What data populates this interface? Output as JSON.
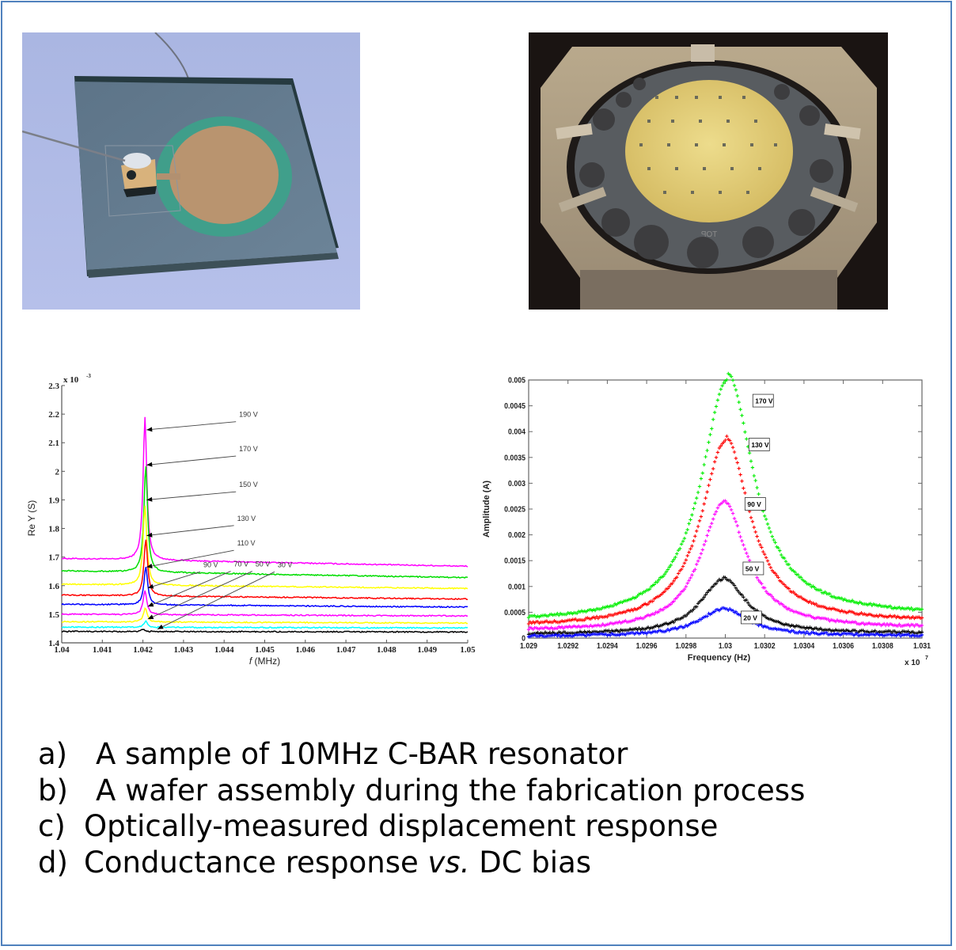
{
  "figure": {
    "border_color": "#4f81bd",
    "photos": [
      {
        "id": "a",
        "description": "10MHz C-BAR resonator sample on glass substrate with gold circular electrode and wire bond"
      },
      {
        "id": "b",
        "description": "Wafer assembly in metal fixture during fabrication",
        "visible_text": "TOP"
      }
    ],
    "captions": [
      {
        "label": "a)",
        "text": "A sample of 10MHz C-BAR resonator"
      },
      {
        "label": "b)",
        "text": "A wafer assembly during the fabrication process"
      },
      {
        "label": "c)",
        "text": "Optically-measured displacement response"
      },
      {
        "label": "d)",
        "text_before": "Conductance response ",
        "text_italic": "vs.",
        "text_after": " DC bias"
      }
    ]
  },
  "chart_data": [
    {
      "type": "line",
      "title": "",
      "xlabel": "f (MHz)",
      "xlabel_italic": "f",
      "xlabel_rest": " (MHz)",
      "ylabel": "Re Y (S)",
      "y_exponent_label": "x 10",
      "y_exponent": "-3",
      "xlim": [
        1.04,
        1.05
      ],
      "ylim": [
        1.4,
        2.3
      ],
      "xticks": [
        "1.04",
        "1.041",
        "1.042",
        "1.043",
        "1.044",
        "1.045",
        "1.046",
        "1.047",
        "1.048",
        "1.049",
        "1.05"
      ],
      "yticks": [
        "1.4",
        "1.5",
        "1.6",
        "1.7",
        "1.8",
        "1.9",
        "2",
        "2.1",
        "2.2",
        "2.3"
      ],
      "grid": false,
      "series": [
        {
          "name": "190 V",
          "color": "#ff00ff",
          "base_start": 1.695,
          "base_end": 1.668,
          "peak_x": 1.04205,
          "peak_y": 2.195
        },
        {
          "name": "170 V",
          "color": "#00dd00",
          "base_start": 1.652,
          "base_end": 1.628,
          "peak_x": 1.04207,
          "peak_y": 2.025
        },
        {
          "name": "150 V",
          "color": "#ffff00",
          "base_start": 1.605,
          "base_end": 1.59,
          "peak_x": 1.04205,
          "peak_y": 1.885
        },
        {
          "name": "130 V",
          "color": "#ff0000",
          "base_start": 1.567,
          "base_end": 1.553,
          "peak_x": 1.04207,
          "peak_y": 1.765
        },
        {
          "name": "110 V",
          "color": "#0000ff",
          "base_start": 1.535,
          "base_end": 1.525,
          "peak_x": 1.04207,
          "peak_y": 1.668
        },
        {
          "name": "90 V",
          "color": "#ff00ff",
          "base_start": 1.5,
          "base_end": 1.494,
          "peak_x": 1.04205,
          "peak_y": 1.583
        },
        {
          "name": "70 V",
          "color": "#ffff00",
          "base_start": 1.474,
          "base_end": 1.469,
          "peak_x": 1.04206,
          "peak_y": 1.522
        },
        {
          "name": "50 V",
          "color": "#00ffff",
          "base_start": 1.455,
          "base_end": 1.452,
          "peak_x": 1.04207,
          "peak_y": 1.477
        },
        {
          "name": "30 V",
          "color": "#000000",
          "base_start": 1.44,
          "base_end": 1.438,
          "peak_x": 1.042,
          "peak_y": 1.447
        }
      ],
      "annotations": [
        {
          "text": "190 V",
          "label_xy": [
            1.04437,
            2.19
          ],
          "arrow_to": [
            1.04209,
            2.145
          ]
        },
        {
          "text": "170 V",
          "label_xy": [
            1.04437,
            2.07
          ],
          "arrow_to": [
            1.04209,
            2.022
          ]
        },
        {
          "text": "150 V",
          "label_xy": [
            1.04437,
            1.945
          ],
          "arrow_to": [
            1.04209,
            1.9
          ]
        },
        {
          "text": "130 V",
          "label_xy": [
            1.04432,
            1.827
          ],
          "arrow_to": [
            1.04209,
            1.775
          ]
        },
        {
          "text": "110 V",
          "label_xy": [
            1.04432,
            1.74
          ],
          "arrow_to": [
            1.04209,
            1.665
          ]
        },
        {
          "text": "90 V",
          "label_xy": [
            1.04349,
            1.665
          ],
          "arrow_to": [
            1.04212,
            1.592
          ]
        },
        {
          "text": "70 V",
          "label_xy": [
            1.04424,
            1.667
          ],
          "arrow_to": [
            1.04212,
            1.527
          ]
        },
        {
          "text": "50 V",
          "label_xy": [
            1.04477,
            1.667
          ],
          "arrow_to": [
            1.04212,
            1.483
          ]
        },
        {
          "text": "30 V",
          "label_xy": [
            1.04532,
            1.665
          ],
          "arrow_to": [
            1.04236,
            1.448
          ]
        }
      ]
    },
    {
      "type": "scatter",
      "title": "",
      "xlabel": "Frequency (Hz)",
      "ylabel": "Amplitude (A)",
      "x_exponent_label": "x 10",
      "x_exponent": "7",
      "xlim": [
        1.029,
        1.031
      ],
      "ylim": [
        0,
        0.005
      ],
      "xticks": [
        "1.029",
        "1.0292",
        "1.0294",
        "1.0296",
        "1.0298",
        "1.03",
        "1.0302",
        "1.0304",
        "1.0306",
        "1.0308",
        "1.031"
      ],
      "yticks": [
        "0",
        "0.0005",
        "0.001",
        "0.0015",
        "0.002",
        "0.0025",
        "0.003",
        "0.0035",
        "0.004",
        "0.0045",
        "0.005"
      ],
      "grid": false,
      "marker": "+",
      "series": [
        {
          "name": "170 V",
          "color": "#00ee00",
          "center": 1.03001,
          "peak": 0.0047,
          "width": 0.00016,
          "edge_left": 0.00045,
          "edge_right": 0.0006
        },
        {
          "name": "130 V",
          "color": "#ff0000",
          "center": 1.03,
          "peak": 0.0036,
          "width": 0.00015,
          "edge_left": 0.00032,
          "edge_right": 0.00042
        },
        {
          "name": "90 V",
          "color": "#ff00ff",
          "center": 1.02999,
          "peak": 0.00248,
          "width": 0.00014,
          "edge_left": 0.0002,
          "edge_right": 0.00026
        },
        {
          "name": "50 V",
          "color": "#000000",
          "center": 1.02999,
          "peak": 0.00107,
          "width": 0.00014,
          "edge_left": 0.0001,
          "edge_right": 0.00012
        },
        {
          "name": "20 V",
          "color": "#0000ff",
          "center": 1.02999,
          "peak": 0.00053,
          "width": 0.00015,
          "edge_left": 5e-05,
          "edge_right": 6e-05
        }
      ],
      "annotations": [
        {
          "text": "170 V",
          "label_xy": [
            1.03014,
            0.0046
          ]
        },
        {
          "text": "130 V",
          "label_xy": [
            1.03012,
            0.00375
          ]
        },
        {
          "text": "90 V",
          "label_xy": [
            1.0301,
            0.0026
          ]
        },
        {
          "text": "50 V",
          "label_xy": [
            1.03009,
            0.00135
          ]
        },
        {
          "text": "20 V",
          "label_xy": [
            1.03008,
            0.0004
          ]
        }
      ]
    }
  ]
}
